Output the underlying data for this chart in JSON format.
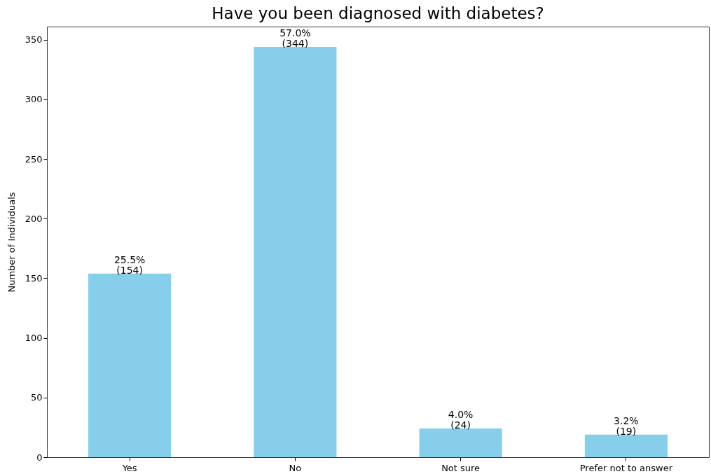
{
  "chart_data": {
    "type": "bar",
    "title": "Have you been diagnosed with diabetes?",
    "ylabel": "Number of Individuals",
    "categories": [
      "Yes",
      "No",
      "Not sure",
      "Prefer not to answer"
    ],
    "values": [
      154,
      344,
      24,
      19
    ],
    "value_labels": [
      "25.5%\n(154)",
      "57.0%\n(344)",
      "4.0%\n(24)",
      "3.2%\n(19)"
    ],
    "color": "#87ceeb",
    "ylim": [
      0,
      361
    ],
    "yticks": [
      0,
      50,
      100,
      150,
      200,
      250,
      300,
      350
    ],
    "grid": false
  }
}
